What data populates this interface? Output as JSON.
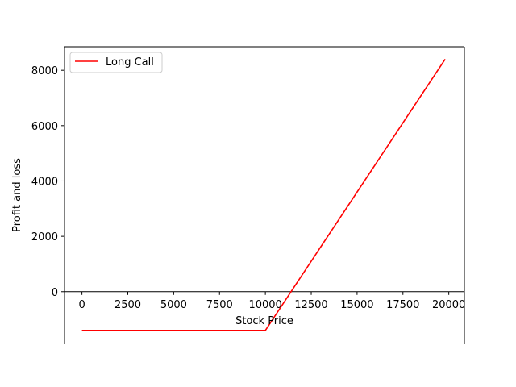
{
  "chart_data": {
    "type": "line",
    "title": "",
    "xlabel": "Stock Price",
    "ylabel": "Profit and loss",
    "xlim": [
      -950,
      20850
    ],
    "ylim": [
      -1900,
      8850
    ],
    "xticks": [
      0,
      2500,
      5000,
      7500,
      10000,
      12500,
      15000,
      17500,
      20000
    ],
    "yticks": [
      0,
      2000,
      4000,
      6000,
      8000
    ],
    "grid": false,
    "legend": "top-left",
    "series": [
      {
        "name": "Long Call",
        "color": "#ff0000",
        "x": [
          0,
          10000,
          19800
        ],
        "y": [
          -1400,
          -1400,
          8400
        ]
      }
    ]
  }
}
